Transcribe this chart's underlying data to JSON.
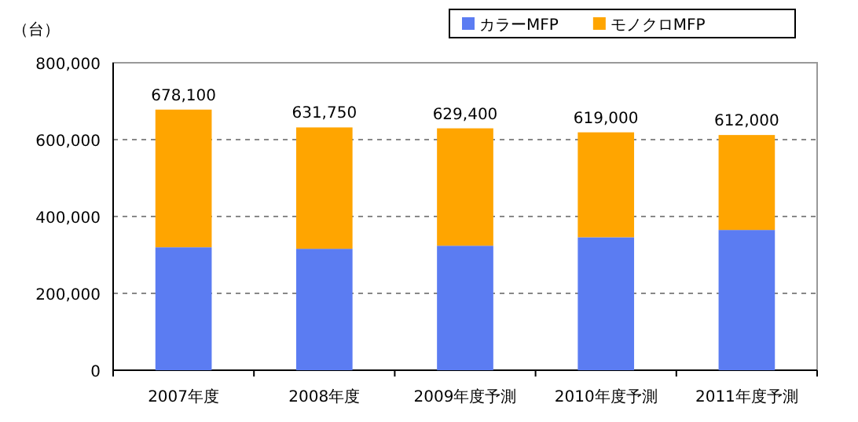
{
  "chart_data": {
    "type": "bar",
    "stacked": true,
    "ylabel": "（台）",
    "categories": [
      "2007年度",
      "2008年度",
      "2009年度予測",
      "2010年度予測",
      "2011年度予測"
    ],
    "series": [
      {
        "name": "カラーMFP",
        "color": "#5b7cf2",
        "values": [
          320000,
          316000,
          324000,
          346000,
          365000
        ]
      },
      {
        "name": "モノクロMFP",
        "color": "#ffa500",
        "values": [
          358100,
          315750,
          305400,
          273000,
          247000
        ]
      }
    ],
    "totals": [
      "678,100",
      "631,750",
      "629,400",
      "619,000",
      "612,000"
    ],
    "ylim": [
      0,
      800000
    ],
    "yticks": [
      {
        "value": 0,
        "label": "0"
      },
      {
        "value": 200000,
        "label": "200,000"
      },
      {
        "value": 400000,
        "label": "400,000"
      },
      {
        "value": 600000,
        "label": "600,000"
      },
      {
        "value": 800000,
        "label": "800,000"
      }
    ],
    "grid": "y",
    "legend": "top right"
  }
}
